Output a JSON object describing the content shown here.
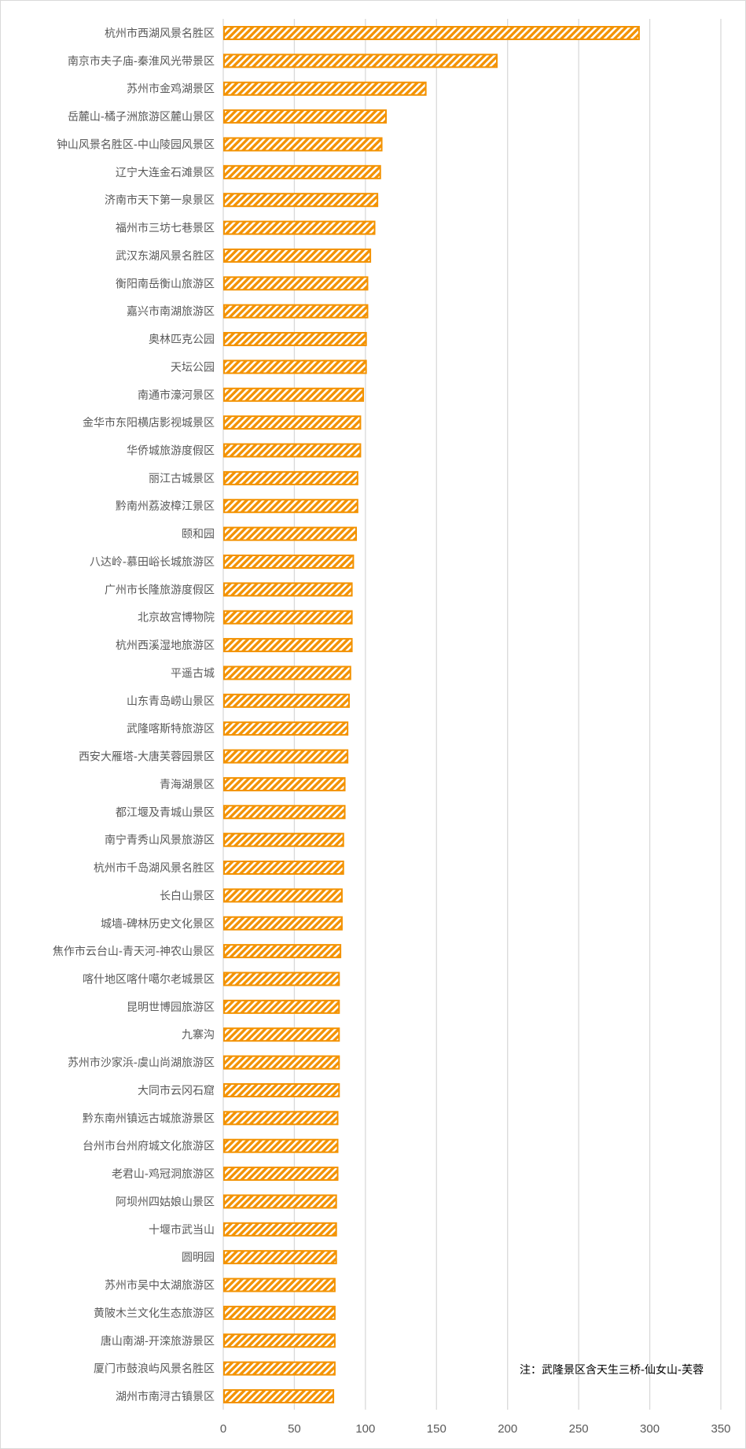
{
  "chart_data": {
    "type": "bar",
    "orientation": "horizontal",
    "categories": [
      "杭州市西湖风景名胜区",
      "南京市夫子庙-秦淮风光带景区",
      "苏州市金鸡湖景区",
      "岳麓山-橘子洲旅游区麓山景区",
      "钟山风景名胜区-中山陵园风景区",
      "辽宁大连金石滩景区",
      "济南市天下第一泉景区",
      "福州市三坊七巷景区",
      "武汉东湖风景名胜区",
      "衡阳南岳衡山旅游区",
      "嘉兴市南湖旅游区",
      "奥林匹克公园",
      "天坛公园",
      "南通市濠河景区",
      "金华市东阳横店影视城景区",
      "华侨城旅游度假区",
      "丽江古城景区",
      "黔南州荔波樟江景区",
      "颐和园",
      "八达岭-慕田峪长城旅游区",
      "广州市长隆旅游度假区",
      "北京故宫博物院",
      "杭州西溪湿地旅游区",
      "平遥古城",
      "山东青岛崂山景区",
      "武隆喀斯特旅游区",
      "西安大雁塔-大唐芙蓉园景区",
      "青海湖景区",
      "都江堰及青城山景区",
      "南宁青秀山风景旅游区",
      "杭州市千岛湖风景名胜区",
      "长白山景区",
      "城墙-碑林历史文化景区",
      "焦作市云台山-青天河-神农山景区",
      "喀什地区喀什噶尔老城景区",
      "昆明世博园旅游区",
      "九寨沟",
      "苏州市沙家浜-虞山尚湖旅游区",
      "大同市云冈石窟",
      "黔东南州镇远古城旅游景区",
      "台州市台州府城文化旅游区",
      "老君山-鸡冠洞旅游区",
      "阿坝州四姑娘山景区",
      "十堰市武当山",
      "圆明园",
      "苏州市吴中太湖旅游区",
      "黄陂木兰文化生态旅游区",
      "唐山南湖-开滦旅游景区",
      "厦门市鼓浪屿风景名胜区",
      "湖州市南浔古镇景区"
    ],
    "values": [
      293,
      193,
      143,
      115,
      112,
      111,
      109,
      107,
      104,
      102,
      102,
      101,
      101,
      99,
      97,
      97,
      95,
      95,
      94,
      92,
      91,
      91,
      91,
      90,
      89,
      88,
      88,
      86,
      86,
      85,
      85,
      84,
      84,
      83,
      82,
      82,
      82,
      82,
      82,
      81,
      81,
      81,
      80,
      80,
      80,
      79,
      79,
      79,
      79,
      78
    ],
    "xlim": [
      0,
      350
    ],
    "xticks": [
      "0",
      "50",
      "100",
      "150",
      "200",
      "250",
      "300",
      "350"
    ],
    "grid": true,
    "bar_color": "#F39200",
    "bar_fill": "diagonal-stripes",
    "annotation": "注：武隆景区含天生三桥-仙女山-芙蓉"
  }
}
